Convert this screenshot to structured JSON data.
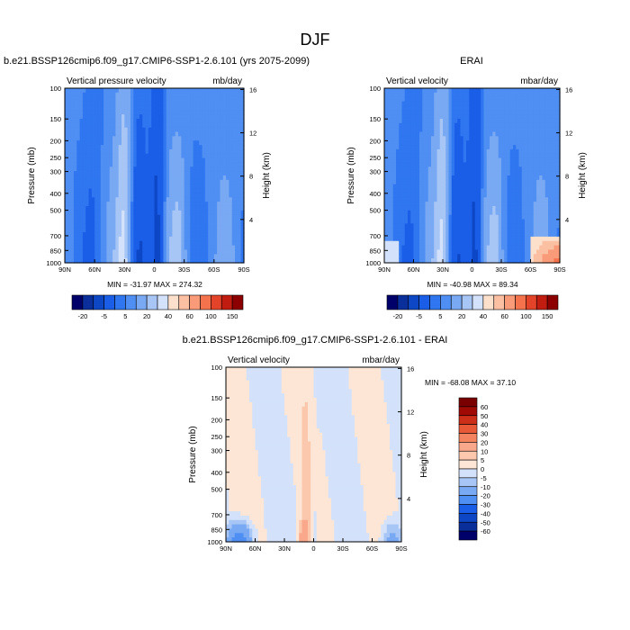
{
  "figure": {
    "title": "DJF"
  },
  "colors": {
    "plot1_levels": [
      "#00006b",
      "#0a2f9a",
      "#0d47c6",
      "#1a5ee8",
      "#2f76f0",
      "#4f8ef2",
      "#79a9f3",
      "#a7c6f5",
      "#d3e2fa",
      "#fde0cc",
      "#fbbfa2",
      "#f99a78",
      "#f4734d",
      "#e24329",
      "#c01d10",
      "#8c0000"
    ],
    "diff_levels": [
      "#00006b",
      "#0a2f9a",
      "#0d47c6",
      "#1a5ee8",
      "#4f8ef2",
      "#79a9f3",
      "#a7c6f5",
      "#d3e2fa",
      "#fde6d6",
      "#fbc8ae",
      "#f9a88b",
      "#f4845f",
      "#e85a37",
      "#cc2f18",
      "#a00a05",
      "#7a0000"
    ]
  },
  "chart_data": [
    {
      "type": "heatmap",
      "name": "model",
      "title": "b.e21.BSSP126cmip6.f09_g17.CMIP6-SSP1-2.6.101 (yrs 2075-2099)",
      "left_label": "Vertical pressure velocity",
      "right_label": "mb/day",
      "ylabel": "Pressure (mb)",
      "y2label": "Height (km)",
      "x_ticks": [
        "90N",
        "60N",
        "30N",
        "0",
        "30S",
        "60S",
        "90S"
      ],
      "y_ticks": [
        "100",
        "150",
        "200",
        "250",
        "300",
        "400",
        "500",
        "700",
        "850",
        "1000"
      ],
      "y2_ticks": [
        "16",
        "12",
        "8",
        "4"
      ],
      "stats": "MIN = -31.97  MAX = 274.32",
      "colorbar_labels": [
        "-20",
        "-5",
        "5",
        "20",
        "40",
        "60",
        "100",
        "150"
      ]
    },
    {
      "type": "heatmap",
      "name": "obs",
      "title": "ERAI",
      "left_label": "Vertical velocity",
      "right_label": "mbar/day",
      "ylabel": "Pressure (mb)",
      "y2label": "Height (km)",
      "x_ticks": [
        "90N",
        "60N",
        "30N",
        "0",
        "30S",
        "60S",
        "90S"
      ],
      "y_ticks": [
        "100",
        "150",
        "200",
        "250",
        "300",
        "400",
        "500",
        "700",
        "850",
        "1000"
      ],
      "y2_ticks": [
        "16",
        "12",
        "8",
        "4"
      ],
      "stats": "MIN = -40.98  MAX =  89.34",
      "colorbar_labels": [
        "-20",
        "-5",
        "5",
        "20",
        "40",
        "60",
        "100",
        "150"
      ]
    },
    {
      "type": "heatmap",
      "name": "difference",
      "title": "b.e21.BSSP126cmip6.f09_g17.CMIP6-SSP1-2.6.101 - ERAI",
      "left_label": "Vertical velocity",
      "right_label": "mbar/day",
      "ylabel": "Pressure (mb)",
      "y2label": "Height (km)",
      "x_ticks": [
        "90N",
        "60N",
        "30N",
        "0",
        "30S",
        "60S",
        "90S"
      ],
      "y_ticks": [
        "100",
        "150",
        "200",
        "250",
        "300",
        "400",
        "500",
        "700",
        "850",
        "1000"
      ],
      "y2_ticks": [
        "16",
        "12",
        "8",
        "4"
      ],
      "stats": "MIN = -68.08  MAX =  37.10",
      "colorbar_labels": [
        "60",
        "50",
        "40",
        "30",
        "20",
        "10",
        "5",
        "0",
        "-5",
        "-10",
        "-20",
        "-30",
        "-40",
        "-50",
        "-60"
      ]
    }
  ]
}
